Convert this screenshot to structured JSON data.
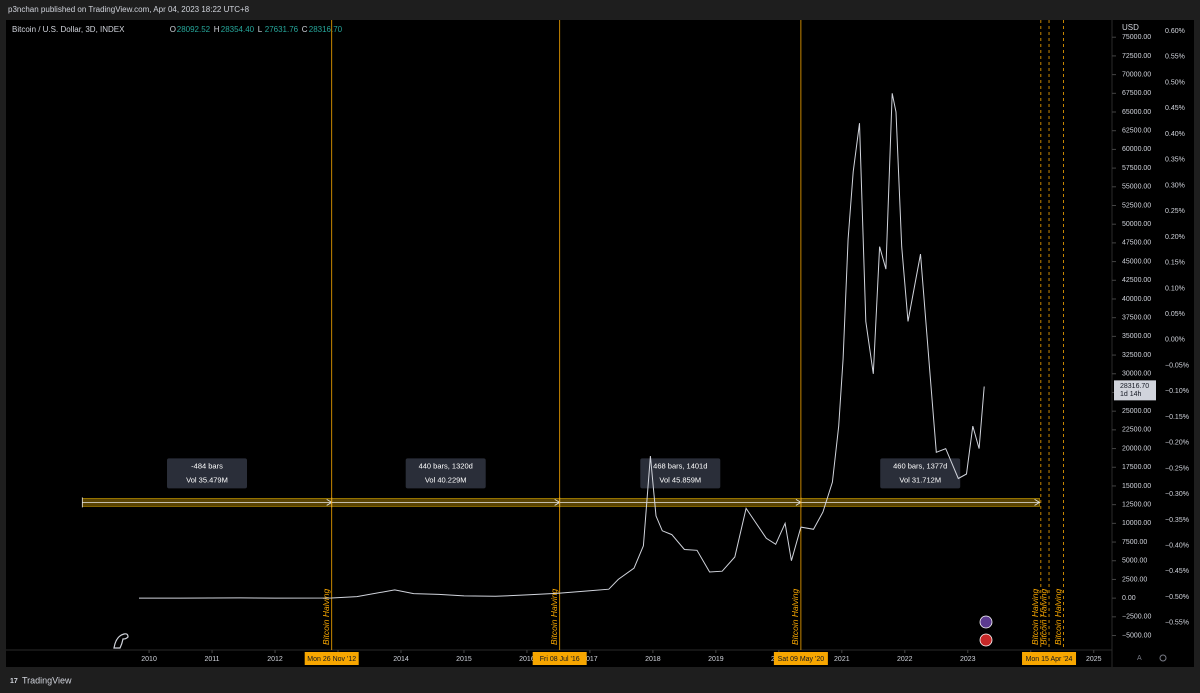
{
  "chart_data": {
    "type": "line",
    "header": "p3nchan published on TradingView.com, Apr 04, 2023 18:22 UTC+8",
    "title": "Bitcoin / U.S. Dollar, 3D, INDEX",
    "ohlc": [
      {
        "key": "O",
        "value": "28092.52"
      },
      {
        "key": "H",
        "value": "28354.40"
      },
      {
        "key": "L",
        "value": "27631.76"
      },
      {
        "key": "C",
        "value": "28316.70"
      }
    ],
    "currency": "USD",
    "footer": "TradingView",
    "color": "#d1d4dc",
    "x": [
      2009.84,
      2010.5,
      2011.45,
      2012.0,
      2012.9,
      2013.3,
      2013.9,
      2014.2,
      2014.6,
      2015.0,
      2015.5,
      2016.0,
      2016.5,
      2017.0,
      2017.3,
      2017.45,
      2017.7,
      2017.85,
      2017.96,
      2018.05,
      2018.15,
      2018.3,
      2018.5,
      2018.7,
      2018.9,
      2019.1,
      2019.3,
      2019.48,
      2019.6,
      2019.8,
      2019.95,
      2020.1,
      2020.2,
      2020.35,
      2020.55,
      2020.7,
      2020.85,
      2020.95,
      2021.02,
      2021.1,
      2021.18,
      2021.28,
      2021.38,
      2021.5,
      2021.6,
      2021.7,
      2021.8,
      2021.86,
      2021.95,
      2022.05,
      2022.25,
      2022.4,
      2022.5,
      2022.65,
      2022.85,
      2022.98,
      2023.08,
      2023.18,
      2023.26
    ],
    "values": [
      0,
      0,
      30,
      5,
      12,
      200,
      1100,
      600,
      500,
      300,
      250,
      430,
      650,
      1000,
      1200,
      2500,
      4000,
      7000,
      19000,
      11000,
      9000,
      8500,
      6500,
      6400,
      3500,
      3600,
      5500,
      12000,
      10500,
      8000,
      7200,
      10000,
      5000,
      9500,
      9200,
      11500,
      15500,
      23000,
      32000,
      48000,
      57000,
      63500,
      37000,
      30000,
      47000,
      44000,
      67500,
      65000,
      47000,
      37000,
      46000,
      30000,
      19500,
      20000,
      16000,
      16600,
      23000,
      20000,
      28300
    ],
    "xlim": [
      2007.76,
      2025.29
    ],
    "xticks": [
      2010,
      2011,
      2012,
      2013,
      2014,
      2015,
      2016,
      2017,
      2018,
      2019,
      2020,
      2021,
      2022,
      2023,
      2024,
      2025
    ],
    "ylim": [
      -6400,
      76500
    ],
    "yticks": [
      {
        "value": -5000,
        "label": "−5000.00"
      },
      {
        "value": -2500,
        "label": "−2500.00"
      },
      {
        "value": 0,
        "label": "0.00"
      },
      {
        "value": 2500,
        "label": "2500.00"
      },
      {
        "value": 5000,
        "label": "5000.00"
      },
      {
        "value": 7500,
        "label": "7500.00"
      },
      {
        "value": 10000,
        "label": "10000.00"
      },
      {
        "value": 12500,
        "label": "12500.00"
      },
      {
        "value": 15000,
        "label": "15000.00"
      },
      {
        "value": 17500,
        "label": "17500.00"
      },
      {
        "value": 20000,
        "label": "20000.00"
      },
      {
        "value": 22500,
        "label": "22500.00"
      },
      {
        "value": 25000,
        "label": "25000.00"
      },
      {
        "value": 27500,
        "label": "27500.00"
      },
      {
        "value": 30000,
        "label": "30000.00"
      },
      {
        "value": 32500,
        "label": "32500.00"
      },
      {
        "value": 35000,
        "label": "35000.00"
      },
      {
        "value": 37500,
        "label": "37500.00"
      },
      {
        "value": 40000,
        "label": "40000.00"
      },
      {
        "value": 42500,
        "label": "42500.00"
      },
      {
        "value": 45000,
        "label": "45000.00"
      },
      {
        "value": 47500,
        "label": "47500.00"
      },
      {
        "value": 50000,
        "label": "50000.00"
      },
      {
        "value": 52500,
        "label": "52500.00"
      },
      {
        "value": 55000,
        "label": "55000.00"
      },
      {
        "value": 57500,
        "label": "57500.00"
      },
      {
        "value": 60000,
        "label": "60000.00"
      },
      {
        "value": 62500,
        "label": "62500.00"
      },
      {
        "value": 65000,
        "label": "65000.00"
      },
      {
        "value": 67500,
        "label": "67500.00"
      },
      {
        "value": 70000,
        "label": "70000.00"
      },
      {
        "value": 72500,
        "label": "72500.00"
      },
      {
        "value": 75000,
        "label": "75000.00"
      }
    ],
    "y2lim": [
      -0.595,
      0.61
    ],
    "y2ticks": [
      {
        "value": 0.6,
        "label": "0.60%"
      },
      {
        "value": 0.55,
        "label": "0.55%"
      },
      {
        "value": 0.5,
        "label": "0.50%"
      },
      {
        "value": 0.45,
        "label": "0.45%"
      },
      {
        "value": 0.4,
        "label": "0.40%"
      },
      {
        "value": 0.35,
        "label": "0.35%"
      },
      {
        "value": 0.3,
        "label": "0.30%"
      },
      {
        "value": 0.25,
        "label": "0.25%"
      },
      {
        "value": 0.2,
        "label": "0.20%"
      },
      {
        "value": 0.15,
        "label": "0.15%"
      },
      {
        "value": 0.1,
        "label": "0.10%"
      },
      {
        "value": 0.05,
        "label": "0.05%"
      },
      {
        "value": 0,
        "label": "0.00%"
      },
      {
        "value": -0.05,
        "label": "−0.05%"
      },
      {
        "value": -0.1,
        "label": "−0.10%"
      },
      {
        "value": -0.15,
        "label": "−0.15%"
      },
      {
        "value": -0.2,
        "label": "−0.20%"
      },
      {
        "value": -0.25,
        "label": "−0.25%"
      },
      {
        "value": -0.3,
        "label": "−0.30%"
      },
      {
        "value": -0.35,
        "label": "−0.35%"
      },
      {
        "value": -0.4,
        "label": "−0.40%"
      },
      {
        "value": -0.45,
        "label": "−0.45%"
      },
      {
        "value": -0.5,
        "label": "−0.50%"
      },
      {
        "value": -0.55,
        "label": "−0.55%"
      }
    ],
    "last_price": {
      "value": 28316.7,
      "label": "28316.70",
      "countdown": "1d 14h"
    },
    "halvings": [
      {
        "x": 2012.9,
        "label": "Bitcoin Halving",
        "date_label": "Mon 26 Nov '12"
      },
      {
        "x": 2016.52,
        "label": "Bitcoin Halving",
        "date_label": "Fri 08 Jul '16"
      },
      {
        "x": 2020.35,
        "label": "Bitcoin Halving",
        "date_label": "Sat 09 May '20"
      }
    ],
    "projected_halvings": [
      {
        "x": 2024.16,
        "label": "Bitcoin Halving"
      },
      {
        "x": 2024.29,
        "label": "Bitcoin Halving",
        "date_label": "Mon 15 Apr '24"
      },
      {
        "x": 2024.52,
        "label": "Bitcoin Halving"
      }
    ],
    "measure_level": 12800,
    "measurements": [
      {
        "x_start": 2008.94,
        "x_end": 2012.9,
        "bars": "-484 bars",
        "volume": "Vol 35.479M"
      },
      {
        "x_start": 2012.9,
        "x_end": 2016.52,
        "bars": "440 bars, 1320d",
        "volume": "Vol 40.229M"
      },
      {
        "x_start": 2016.52,
        "x_end": 2020.35,
        "bars": "468 bars, 1401d",
        "volume": "Vol 45.859M"
      },
      {
        "x_start": 2020.35,
        "x_end": 2024.14,
        "bars": "460 bars, 1377d",
        "volume": "Vol 31.712M"
      }
    ]
  }
}
